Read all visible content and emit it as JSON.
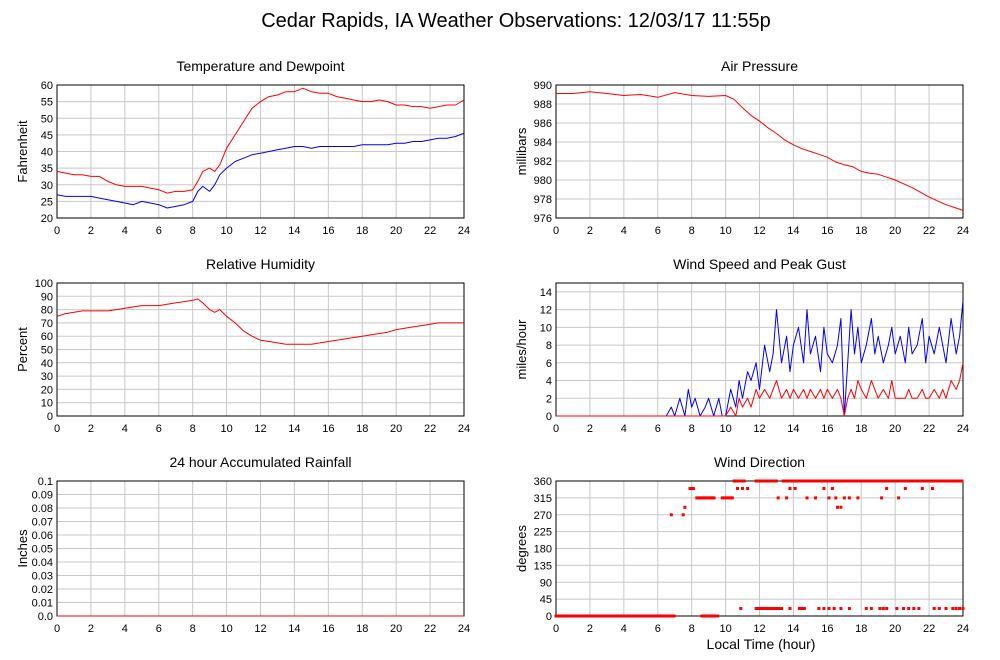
{
  "page": {
    "title": "Cedar Rapids, IA Weather Observations: 12/03/17 11:55p",
    "xlabel": "Local Time (hour)"
  },
  "colors": {
    "red": "#ff0000",
    "blue": "#0000ff",
    "grid": "#c8c8c8"
  },
  "chart_data": [
    {
      "type": "line",
      "title": "Temperature and Dewpoint",
      "xlabel": "",
      "ylabel": "Fahrenheit",
      "xlim": [
        0,
        24
      ],
      "ylim": [
        20,
        60
      ],
      "yticks": [
        20,
        25,
        30,
        35,
        40,
        45,
        50,
        55,
        60
      ],
      "xticks": [
        0,
        2,
        4,
        6,
        8,
        10,
        12,
        14,
        16,
        18,
        20,
        22,
        24
      ],
      "series": [
        {
          "color": "#ff0000",
          "x": [
            0,
            0.5,
            1,
            1.5,
            2,
            2.5,
            3,
            3.5,
            4,
            4.5,
            5,
            5.5,
            6,
            6.5,
            7,
            7.5,
            8,
            8.3,
            8.6,
            9,
            9.3,
            9.6,
            10,
            10.5,
            11,
            11.5,
            12,
            12.5,
            13,
            13.5,
            14,
            14.5,
            15,
            15.5,
            16,
            16.5,
            17,
            17.5,
            18,
            18.5,
            19,
            19.5,
            20,
            20.5,
            21,
            21.5,
            22,
            22.5,
            23,
            23.5,
            24
          ],
          "y": [
            34,
            33.5,
            33,
            33,
            32.5,
            32.5,
            31,
            30,
            29.5,
            29.5,
            29.5,
            29,
            28.5,
            27.5,
            28,
            28,
            28.5,
            31,
            34,
            35,
            34,
            36,
            41,
            45,
            49,
            53,
            55,
            56.5,
            57,
            58,
            58,
            59,
            58,
            57.5,
            57.5,
            56.5,
            56,
            55.5,
            55,
            55,
            55.5,
            55,
            54,
            54,
            53.5,
            53.5,
            53,
            53.5,
            54,
            54,
            55.5
          ]
        },
        {
          "color": "#0000ff",
          "x": [
            0,
            0.5,
            1,
            1.5,
            2,
            2.5,
            3,
            3.5,
            4,
            4.5,
            5,
            5.5,
            6,
            6.5,
            7,
            7.5,
            8,
            8.3,
            8.6,
            9,
            9.3,
            9.6,
            10,
            10.5,
            11,
            11.5,
            12,
            12.5,
            13,
            13.5,
            14,
            14.5,
            15,
            15.5,
            16,
            16.5,
            17,
            17.5,
            18,
            18.5,
            19,
            19.5,
            20,
            20.5,
            21,
            21.5,
            22,
            22.5,
            23,
            23.5,
            24
          ],
          "y": [
            27,
            26.5,
            26.5,
            26.5,
            26.5,
            26,
            25.5,
            25,
            24.5,
            24,
            25,
            24.5,
            24,
            23,
            23.5,
            24,
            25,
            28,
            29.5,
            28,
            30,
            33,
            35,
            37,
            38,
            39,
            39.5,
            40,
            40.5,
            41,
            41.5,
            41.5,
            41,
            41.5,
            41.5,
            41.5,
            41.5,
            41.5,
            42,
            42,
            42,
            42,
            42.5,
            42.5,
            43,
            43,
            43.5,
            44,
            44,
            44.5,
            45.5
          ]
        }
      ]
    },
    {
      "type": "line",
      "title": "Air Pressure",
      "xlabel": "",
      "ylabel": "millibars",
      "xlim": [
        0,
        24
      ],
      "ylim": [
        976,
        990
      ],
      "yticks": [
        976,
        978,
        980,
        982,
        984,
        986,
        988,
        990
      ],
      "xticks": [
        0,
        2,
        4,
        6,
        8,
        10,
        12,
        14,
        16,
        18,
        20,
        22,
        24
      ],
      "series": [
        {
          "color": "#ff0000",
          "x": [
            0,
            1,
            2,
            3,
            4,
            5,
            6,
            7,
            8,
            9,
            10,
            10.5,
            11,
            11.5,
            12,
            12.5,
            13,
            13.5,
            14,
            14.5,
            15,
            15.5,
            16,
            16.5,
            17,
            17.5,
            18,
            18.5,
            19,
            19.5,
            20,
            20.5,
            21,
            21.5,
            22,
            22.5,
            23,
            23.5,
            24
          ],
          "y": [
            989.1,
            989.1,
            989.3,
            989.1,
            988.9,
            989.0,
            988.7,
            989.2,
            988.9,
            988.8,
            988.9,
            988.5,
            987.6,
            986.8,
            986.2,
            985.5,
            984.9,
            984.2,
            983.7,
            983.3,
            983.0,
            982.7,
            982.4,
            981.9,
            981.6,
            981.4,
            980.9,
            980.7,
            980.6,
            980.3,
            980.0,
            979.6,
            979.2,
            978.7,
            978.2,
            977.8,
            977.4,
            977.1,
            976.8
          ]
        }
      ]
    },
    {
      "type": "line",
      "title": "Relative Humidity",
      "xlabel": "",
      "ylabel": "Percent",
      "xlim": [
        0,
        24
      ],
      "ylim": [
        0,
        100
      ],
      "yticks": [
        0,
        10,
        20,
        30,
        40,
        50,
        60,
        70,
        80,
        90,
        100
      ],
      "xticks": [
        0,
        2,
        4,
        6,
        8,
        10,
        12,
        14,
        16,
        18,
        20,
        22,
        24
      ],
      "series": [
        {
          "color": "#ff0000",
          "x": [
            0,
            0.5,
            1,
            1.5,
            2,
            2.5,
            3,
            3.5,
            4,
            4.5,
            5,
            5.5,
            6,
            6.5,
            7,
            7.5,
            8,
            8.3,
            8.6,
            9,
            9.3,
            9.6,
            10,
            10.5,
            11,
            11.5,
            12,
            12.5,
            13,
            13.5,
            14,
            14.5,
            15,
            15.5,
            16,
            16.5,
            17,
            17.5,
            18,
            18.5,
            19,
            19.5,
            20,
            20.5,
            21,
            21.5,
            22,
            22.5,
            23,
            23.5,
            24
          ],
          "y": [
            75,
            77,
            78,
            79,
            79,
            79,
            79,
            80,
            81,
            82,
            83,
            83,
            83,
            84,
            85,
            86,
            87,
            88,
            85,
            80,
            78,
            80,
            75,
            70,
            64,
            60,
            57,
            56,
            55,
            54,
            54,
            54,
            54,
            55,
            56,
            57,
            58,
            59,
            60,
            61,
            62,
            63,
            65,
            66,
            67,
            68,
            69,
            70,
            70,
            70,
            70
          ]
        }
      ]
    },
    {
      "type": "line",
      "title": "Wind Speed and Peak Gust",
      "xlabel": "",
      "ylabel": "miles/hour",
      "xlim": [
        0,
        24
      ],
      "ylim": [
        0,
        15
      ],
      "yticks": [
        0,
        2,
        4,
        6,
        8,
        10,
        12,
        14
      ],
      "xticks": [
        0,
        2,
        4,
        6,
        8,
        10,
        12,
        14,
        16,
        18,
        20,
        22,
        24
      ],
      "series": [
        {
          "color": "#0000ff",
          "x": [
            0,
            6.5,
            6.8,
            7.0,
            7.3,
            7.6,
            7.8,
            8.0,
            8.2,
            8.5,
            8.8,
            9.0,
            9.3,
            9.6,
            9.8,
            10.0,
            10.3,
            10.6,
            10.8,
            11.0,
            11.3,
            11.5,
            11.8,
            12.0,
            12.3,
            12.6,
            12.8,
            13.0,
            13.3,
            13.6,
            13.8,
            14.0,
            14.3,
            14.6,
            14.8,
            15.0,
            15.3,
            15.6,
            15.8,
            16.0,
            16.3,
            16.6,
            16.8,
            17.0,
            17.2,
            17.4,
            17.6,
            17.8,
            18.0,
            18.3,
            18.6,
            18.8,
            19.0,
            19.3,
            19.6,
            19.8,
            20.0,
            20.3,
            20.6,
            20.8,
            21.0,
            21.3,
            21.6,
            21.8,
            22.0,
            22.3,
            22.6,
            22.8,
            23.0,
            23.3,
            23.6,
            23.8,
            24.0
          ],
          "y": [
            0,
            0,
            1,
            0,
            2,
            0,
            3,
            1,
            2,
            0,
            1,
            2,
            0,
            2,
            0,
            0,
            3,
            1,
            4,
            2,
            5,
            4,
            6,
            3,
            8,
            5,
            7,
            12,
            6,
            9,
            5,
            8,
            10,
            6,
            12,
            7,
            9,
            5,
            10,
            7,
            6,
            8,
            11,
            0,
            6,
            12,
            7,
            10,
            6,
            8,
            11,
            7,
            9,
            6,
            8,
            10,
            7,
            9,
            6,
            10,
            7,
            8,
            11,
            6,
            9,
            7,
            10,
            8,
            6,
            11,
            7,
            9,
            13
          ]
        },
        {
          "color": "#ff0000",
          "x": [
            0,
            10.0,
            10.3,
            10.6,
            10.8,
            11.0,
            11.3,
            11.5,
            11.8,
            12.0,
            12.3,
            12.6,
            12.8,
            13.0,
            13.3,
            13.6,
            13.8,
            14.0,
            14.3,
            14.6,
            14.8,
            15.0,
            15.3,
            15.6,
            15.8,
            16.0,
            16.3,
            16.6,
            16.8,
            17.0,
            17.2,
            17.4,
            17.6,
            17.8,
            18.0,
            18.3,
            18.6,
            18.8,
            19.0,
            19.3,
            19.6,
            19.8,
            20.0,
            20.3,
            20.6,
            20.8,
            21.0,
            21.3,
            21.6,
            21.8,
            22.0,
            22.3,
            22.6,
            22.8,
            23.0,
            23.3,
            23.6,
            23.8,
            24.0
          ],
          "y": [
            0,
            0,
            1,
            0,
            2,
            1,
            2,
            1,
            3,
            2,
            3,
            2,
            3,
            4,
            2,
            3,
            2,
            3,
            2,
            3,
            2,
            3,
            2,
            3,
            2,
            3,
            2,
            3,
            2,
            0,
            2,
            3,
            2,
            4,
            3,
            2,
            4,
            3,
            2,
            3,
            2,
            4,
            2,
            2,
            2,
            3,
            2,
            2,
            3,
            2,
            2,
            3,
            2,
            3,
            2,
            4,
            3,
            4,
            6
          ]
        }
      ]
    },
    {
      "type": "line",
      "title": "24 hour Accumulated Rainfall",
      "xlabel": "",
      "ylabel": "Inches",
      "xlim": [
        0,
        24
      ],
      "ylim": [
        0,
        0.1
      ],
      "yticks": [
        0.0,
        0.01,
        0.02,
        0.03,
        0.04,
        0.05,
        0.06,
        0.07,
        0.08,
        0.09,
        0.1
      ],
      "ytick_labels": [
        "0.0",
        "0.01",
        "0.02",
        "0.03",
        "0.04",
        "0.05",
        "0.06",
        "0.07",
        "0.08",
        "0.09",
        "0.1"
      ],
      "xticks": [
        0,
        2,
        4,
        6,
        8,
        10,
        12,
        14,
        16,
        18,
        20,
        22,
        24
      ],
      "series": [
        {
          "color": "#ff0000",
          "x": [
            0,
            24
          ],
          "y": [
            0,
            0
          ]
        }
      ]
    },
    {
      "type": "scatter",
      "title": "Wind Direction",
      "xlabel": "Local Time (hour)",
      "ylabel": "degrees",
      "xlim": [
        0,
        24
      ],
      "ylim": [
        0,
        360
      ],
      "yticks": [
        0,
        45,
        90,
        135,
        180,
        225,
        270,
        315,
        360
      ],
      "xticks": [
        0,
        2,
        4,
        6,
        8,
        10,
        12,
        14,
        16,
        18,
        20,
        22,
        24
      ],
      "series": [
        {
          "color": "#ff0000",
          "points_spec": [
            {
              "y": 0,
              "x_ranges": [
                [
                  0,
                  7.0
                ],
                [
                  8.6,
                  9.6
                ]
              ]
            },
            {
              "y": 270,
              "x_values": [
                6.8,
                7.5
              ]
            },
            {
              "y": 290,
              "x_values": [
                7.6,
                16.6,
                16.8
              ]
            },
            {
              "y": 340,
              "x_values": [
                7.9,
                8.0,
                8.1,
                10.7,
                11.3
              ]
            },
            {
              "y": 315,
              "x_ranges": [
                [
                  8.3,
                  9.4
                ],
                [
                  9.8,
                  10.4
                ]
              ],
              "x_values": [
                13.1,
                13.6,
                14.8,
                15.3,
                16.1,
                16.5,
                17.0,
                17.3,
                17.8,
                19.2,
                20.2
              ]
            },
            {
              "y": 360,
              "x_ranges": [
                [
                  10.5,
                  11.1
                ],
                [
                  11.8,
                  13.0
                ],
                [
                  13.4,
                  24
                ]
              ]
            },
            {
              "y": 340,
              "x_values": [
                11.0,
                13.8,
                14.1,
                15.8,
                16.3,
                19.5,
                20.6
              ]
            },
            {
              "y": 20,
              "x_values": [
                10.9,
                11.8,
                11.95,
                12.1,
                12.25,
                12.4,
                12.55,
                12.7,
                12.85,
                13.0,
                13.15,
                13.3,
                13.8,
                14.35,
                14.5,
                14.65,
                15.5,
                15.8,
                16.1,
                16.4,
                16.8,
                17.3,
                18.3,
                18.6,
                19.1,
                19.3,
                19.5,
                20.1,
                20.5,
                20.8,
                21.1,
                21.4,
                22.3,
                22.6,
                23.0,
                23.4,
                23.6,
                23.8,
                24.0
              ]
            },
            {
              "y": 340,
              "x_values": [
                21.6,
                22.2
              ]
            }
          ]
        }
      ]
    }
  ]
}
